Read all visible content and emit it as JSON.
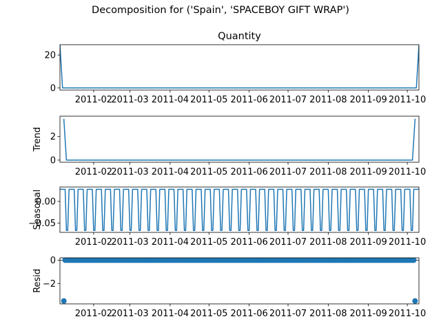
{
  "figure": {
    "suptitle": "Decomposition for ('Spain', 'SPACEBOY GIFT WRAP')"
  },
  "chart_data": [
    {
      "type": "line",
      "title": "Quantity",
      "xlabel": "",
      "ylabel": "",
      "x_tick_labels": [
        "2011-02",
        "2011-03",
        "2011-04",
        "2011-05",
        "2011-06",
        "2011-07",
        "2011-08",
        "2011-09",
        "2011-10"
      ],
      "y_ticks": [
        0,
        20
      ],
      "ylim": [
        -1.3,
        26.3
      ],
      "x_domain": [
        "2011-01-06",
        "2011-10-10"
      ],
      "series": [
        {
          "color": "#1f77b4",
          "points": [
            [
              "2011-01-06",
              26
            ],
            [
              "2011-01-08",
              0
            ],
            [
              "2011-10-08",
              0
            ],
            [
              "2011-10-10",
              26
            ]
          ]
        }
      ]
    },
    {
      "type": "line",
      "title": "",
      "xlabel": "",
      "ylabel": "Trend",
      "x_tick_labels": [
        "2011-02",
        "2011-03",
        "2011-04",
        "2011-05",
        "2011-06",
        "2011-07",
        "2011-08",
        "2011-09",
        "2011-10"
      ],
      "y_ticks": [
        0,
        2
      ],
      "ylim": [
        -0.18,
        3.72
      ],
      "x_domain": [
        "2011-01-06",
        "2011-10-10"
      ],
      "series": [
        {
          "color": "#1f77b4",
          "points": [
            [
              "2011-01-09",
              3.5
            ],
            [
              "2011-01-11",
              0
            ],
            [
              "2011-10-05",
              0
            ],
            [
              "2011-10-07",
              3.5
            ]
          ]
        }
      ]
    },
    {
      "type": "line",
      "title": "",
      "xlabel": "",
      "ylabel": "Seasonal",
      "x_tick_labels": [
        "2011-02",
        "2011-03",
        "2011-04",
        "2011-05",
        "2011-06",
        "2011-07",
        "2011-08",
        "2011-09",
        "2011-10"
      ],
      "y_ticks": [
        -0.05,
        0.0
      ],
      "y_tick_labels": [
        "−0.05",
        "0.00"
      ],
      "ylim": [
        -0.071,
        0.033
      ],
      "x_domain": [
        "2011-01-06",
        "2011-10-10"
      ],
      "pattern": {
        "period_days": 7,
        "values": [
          0.0277,
          0.0277,
          0.0277,
          0.0277,
          0.0277,
          -0.0666,
          -0.0666
        ]
      },
      "series": [
        {
          "color": "#1f77b4"
        }
      ]
    },
    {
      "type": "scatter",
      "title": "",
      "xlabel": "",
      "ylabel": "Resid",
      "x_tick_labels": [
        "2011-02",
        "2011-03",
        "2011-04",
        "2011-05",
        "2011-06",
        "2011-07",
        "2011-08",
        "2011-09",
        "2011-10"
      ],
      "y_ticks": [
        -2,
        0
      ],
      "y_tick_labels": [
        "−2",
        "0"
      ],
      "ylim": [
        -3.75,
        0.2
      ],
      "x_domain": [
        "2011-01-06",
        "2011-10-10"
      ],
      "zero_line": true,
      "series": [
        {
          "color": "#1f77b4",
          "points": [
            [
              "2011-01-09",
              -3.5
            ],
            [
              "2011-10-07",
              -3.5
            ]
          ],
          "baseline_value": 0,
          "baseline_range": [
            "2011-01-10",
            "2011-10-06"
          ]
        }
      ]
    }
  ]
}
